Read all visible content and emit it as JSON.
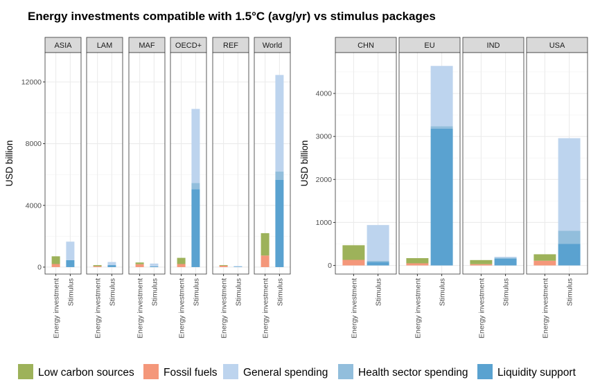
{
  "chart_data": {
    "type": "bar",
    "stacked": true,
    "title": "Energy investments compatible with 1.5°C (avg/yr) vs stimulus packages",
    "ylabel": "USD billion",
    "categories": [
      "Energy investment",
      "Stimulus"
    ],
    "grid": true,
    "legend_position": "bottom",
    "legend": [
      {
        "name": "Low carbon sources",
        "color": "#9db25a"
      },
      {
        "name": "Fossil fuels",
        "color": "#f4977a"
      },
      {
        "name": "General spending",
        "color": "#bdd4ee"
      },
      {
        "name": "Health sector spending",
        "color": "#92bedc"
      },
      {
        "name": "Liquidity support",
        "color": "#5aa2d0"
      }
    ],
    "panels": [
      {
        "ylim": [
          -450,
          13900
        ],
        "yticks": [
          0,
          4000,
          8000,
          12000
        ],
        "facets": [
          {
            "name": "ASIA",
            "bars": [
              [
                {
                  "series": "Fossil fuels",
                  "value": 200
                },
                {
                  "series": "Low carbon sources",
                  "value": 500
                }
              ],
              [
                {
                  "series": "Liquidity support",
                  "value": 450
                },
                {
                  "series": "General spending",
                  "value": 1200
                }
              ]
            ]
          },
          {
            "name": "LAM",
            "bars": [
              [
                {
                  "series": "Fossil fuels",
                  "value": 60
                },
                {
                  "series": "Low carbon sources",
                  "value": 70
                }
              ],
              [
                {
                  "series": "Liquidity support",
                  "value": 130
                },
                {
                  "series": "General spending",
                  "value": 200
                }
              ]
            ]
          },
          {
            "name": "MAF",
            "bars": [
              [
                {
                  "series": "Fossil fuels",
                  "value": 190
                },
                {
                  "series": "Low carbon sources",
                  "value": 110
                }
              ],
              [
                {
                  "series": "Liquidity support",
                  "value": 50
                },
                {
                  "series": "General spending",
                  "value": 180
                }
              ]
            ]
          },
          {
            "name": "OECD+",
            "bars": [
              [
                {
                  "series": "Fossil fuels",
                  "value": 200
                },
                {
                  "series": "Low carbon sources",
                  "value": 400
                }
              ],
              [
                {
                  "series": "Liquidity support",
                  "value": 5050
                },
                {
                  "series": "Health sector spending",
                  "value": 400
                },
                {
                  "series": "General spending",
                  "value": 4800
                }
              ]
            ]
          },
          {
            "name": "REF",
            "bars": [
              [
                {
                  "series": "Fossil fuels",
                  "value": 90
                },
                {
                  "series": "Low carbon sources",
                  "value": 40
                }
              ],
              [
                {
                  "series": "Liquidity support",
                  "value": 30
                },
                {
                  "series": "General spending",
                  "value": 40
                }
              ]
            ]
          },
          {
            "name": "World",
            "bars": [
              [
                {
                  "series": "Fossil fuels",
                  "value": 750
                },
                {
                  "series": "Low carbon sources",
                  "value": 1450
                }
              ],
              [
                {
                  "series": "Liquidity support",
                  "value": 5650
                },
                {
                  "series": "Health sector spending",
                  "value": 550
                },
                {
                  "series": "General spending",
                  "value": 6250
                }
              ]
            ]
          }
        ]
      },
      {
        "ylim": [
          -200,
          4950
        ],
        "yticks": [
          0,
          1000,
          2000,
          3000,
          4000
        ],
        "facets": [
          {
            "name": "CHN",
            "bars": [
              [
                {
                  "series": "Fossil fuels",
                  "value": 130
                },
                {
                  "series": "Low carbon sources",
                  "value": 340
                }
              ],
              [
                {
                  "series": "Liquidity support",
                  "value": 80
                },
                {
                  "series": "Health sector spending",
                  "value": 30
                },
                {
                  "series": "General spending",
                  "value": 830
                }
              ]
            ]
          },
          {
            "name": "EU",
            "bars": [
              [
                {
                  "series": "Fossil fuels",
                  "value": 50
                },
                {
                  "series": "Low carbon sources",
                  "value": 120
                }
              ],
              [
                {
                  "series": "Liquidity support",
                  "value": 3180
                },
                {
                  "series": "Health sector spending",
                  "value": 60
                },
                {
                  "series": "General spending",
                  "value": 1400
                }
              ]
            ]
          },
          {
            "name": "IND",
            "bars": [
              [
                {
                  "series": "Fossil fuels",
                  "value": 30
                },
                {
                  "series": "Low carbon sources",
                  "value": 95
                }
              ],
              [
                {
                  "series": "Liquidity support",
                  "value": 160
                },
                {
                  "series": "Health sector spending",
                  "value": 20
                },
                {
                  "series": "General spending",
                  "value": 20
                }
              ]
            ]
          },
          {
            "name": "USA",
            "bars": [
              [
                {
                  "series": "Fossil fuels",
                  "value": 110
                },
                {
                  "series": "Low carbon sources",
                  "value": 150
                }
              ],
              [
                {
                  "series": "Liquidity support",
                  "value": 500
                },
                {
                  "series": "Health sector spending",
                  "value": 310
                },
                {
                  "series": "General spending",
                  "value": 2150
                }
              ]
            ]
          }
        ]
      }
    ]
  }
}
